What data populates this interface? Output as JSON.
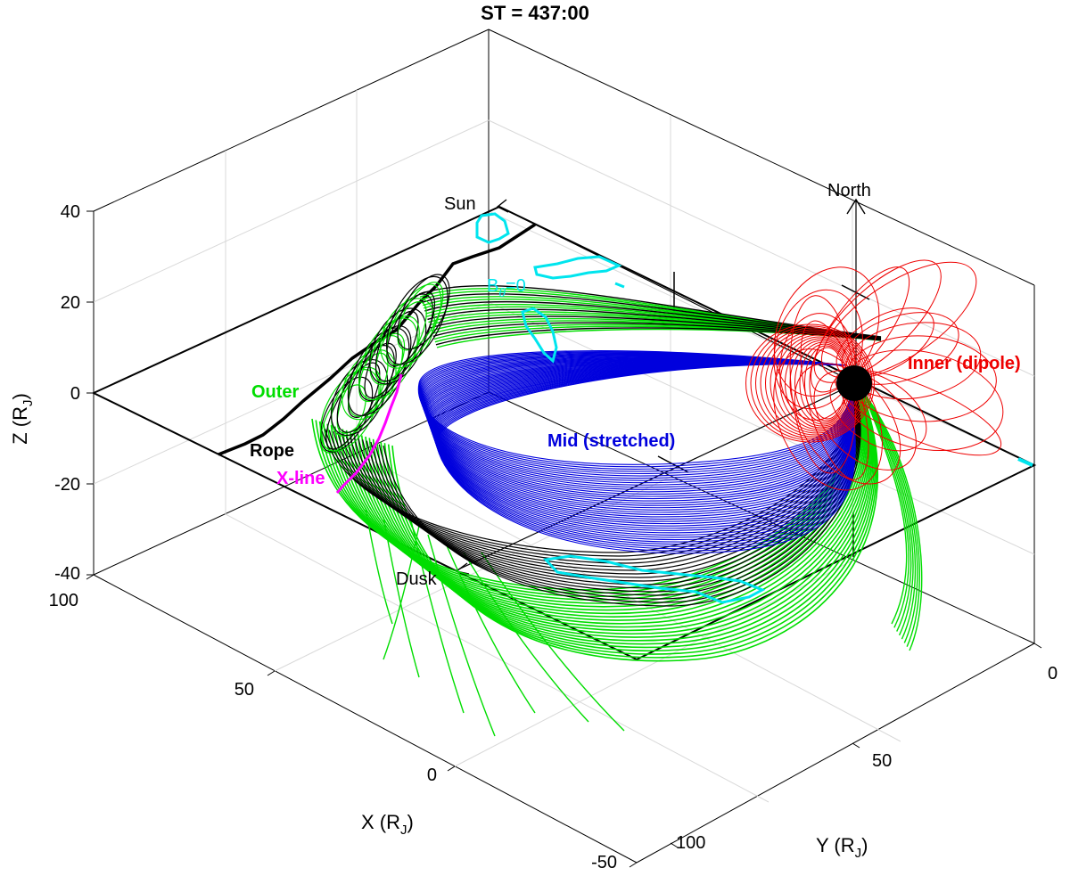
{
  "title": "ST = 437:00",
  "axes": {
    "x_label": "X (R",
    "x_label_sub": "J",
    "y_label": "Y (R",
    "y_label_sub": "J",
    "z_label": "Z (R",
    "z_label_sub": "J",
    "x_ticks": [
      "100",
      "50",
      "0",
      "-50"
    ],
    "y_ticks": [
      "0",
      "50",
      "100"
    ],
    "z_ticks": [
      "40",
      "20",
      "0",
      "-20",
      "-40"
    ]
  },
  "annotations": {
    "sun": "Sun",
    "north": "North",
    "dusk": "Dusk",
    "btheta_main": "B",
    "btheta_sub": "θ",
    "btheta_eq": "=0"
  },
  "labels": {
    "outer": "Outer",
    "rope": "Rope",
    "xline": "X-line",
    "mid": "Mid (stretched)",
    "inner": "Inner (dipole)"
  },
  "colors": {
    "outer": "#00dd00",
    "rope": "#000000",
    "xline": "#ff00ff",
    "mid": "#0000dd",
    "inner": "#ee0000",
    "btheta": "#00e5ee"
  }
}
